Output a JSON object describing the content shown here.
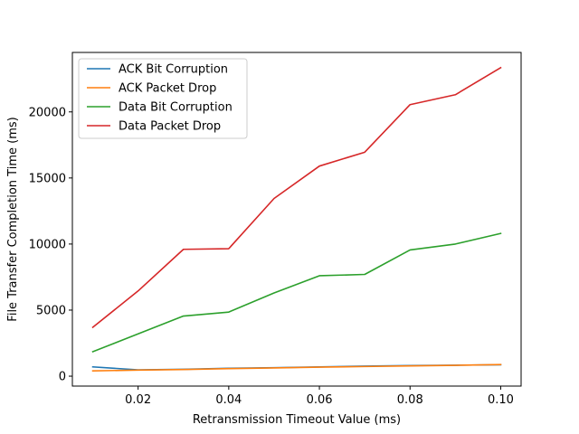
{
  "chart_data": {
    "type": "line",
    "title": "",
    "xlabel": "Retransmission Timeout Value (ms)",
    "ylabel": "File Transfer Completion Time (ms)",
    "xlim": [
      0.0055,
      0.1045
    ],
    "ylim": [
      -750,
      24500
    ],
    "xticks": [
      0.02,
      0.04,
      0.06,
      0.08,
      0.1
    ],
    "xtick_labels": [
      "0.02",
      "0.04",
      "0.06",
      "0.08",
      "0.10"
    ],
    "yticks": [
      0,
      5000,
      10000,
      15000,
      20000
    ],
    "ytick_labels": [
      "0",
      "5000",
      "10000",
      "15000",
      "20000"
    ],
    "grid": false,
    "legend_position": "top-left",
    "x": [
      0.01,
      0.02,
      0.03,
      0.04,
      0.05,
      0.06,
      0.07,
      0.08,
      0.09,
      0.1
    ],
    "series": [
      {
        "name": "ACK Bit Corruption",
        "color": "#1f77b4",
        "values": [
          700,
          480,
          520,
          600,
          640,
          700,
          760,
          800,
          830,
          860
        ]
      },
      {
        "name": "ACK Packet Drop",
        "color": "#ff7f0e",
        "values": [
          400,
          460,
          500,
          570,
          620,
          680,
          730,
          780,
          820,
          880
        ]
      },
      {
        "name": "Data Bit Corruption",
        "color": "#2ca02c",
        "values": [
          1850,
          3200,
          4550,
          4850,
          6300,
          7600,
          7700,
          9550,
          10000,
          10800
        ]
      },
      {
        "name": "Data Packet Drop",
        "color": "#d62728",
        "values": [
          3700,
          6450,
          9600,
          9650,
          13450,
          15900,
          16950,
          20550,
          21300,
          23350
        ]
      }
    ]
  }
}
